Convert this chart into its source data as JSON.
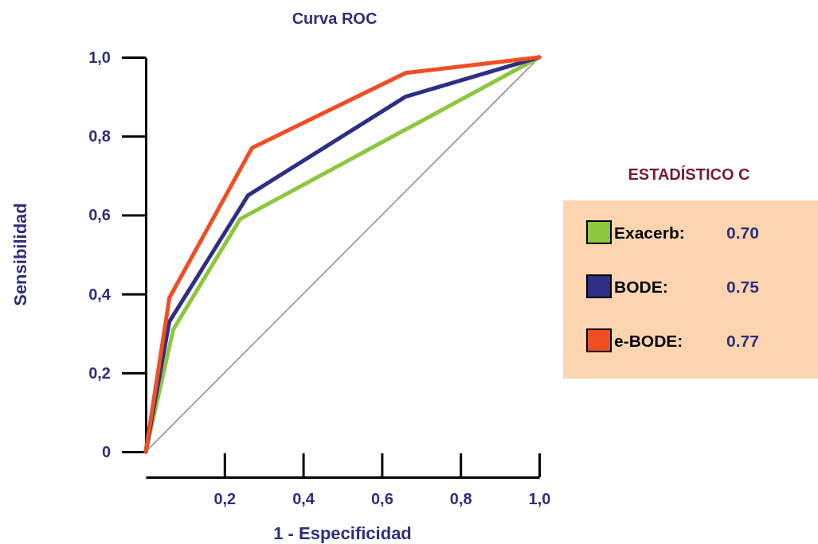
{
  "chart_data": {
    "type": "line",
    "title": "Curva ROC",
    "xlabel": "1 - Especificidad",
    "ylabel": "Sensibilidad",
    "legend_title": "ESTADÍSTICO C",
    "legend": "right",
    "marker": "none",
    "line_style": "solid",
    "grid": false,
    "xlim": [
      0,
      1
    ],
    "ylim": [
      0,
      1
    ],
    "xticks": [
      {
        "value": 0.2,
        "label": "0,2"
      },
      {
        "value": 0.4,
        "label": "0,4"
      },
      {
        "value": 0.6,
        "label": "0,6"
      },
      {
        "value": 0.8,
        "label": "0,8"
      },
      {
        "value": 1,
        "label": "1,0"
      }
    ],
    "yticks": [
      0,
      {
        "value": 0.2,
        "label": "0,2"
      },
      {
        "value": 0.4,
        "label": "0,4"
      },
      {
        "value": 0.6,
        "label": "0,6"
      },
      {
        "value": 0.8,
        "label": "0,8"
      },
      {
        "value": 1,
        "label": "1,0"
      }
    ],
    "series": [
      {
        "color": "#777777",
        "x": [
          0,
          1
        ],
        "values": [
          0,
          1
        ]
      },
      {
        "name": "Exacerb:",
        "color": "#8dc63f",
        "x": [
          0,
          0.07,
          0.24,
          1
        ],
        "values": [
          0,
          0.31,
          0.59,
          1
        ]
      },
      {
        "name": "BODE:",
        "color": "#2e2e85",
        "x": [
          0,
          0.06,
          0.26,
          0.66,
          1
        ],
        "values": [
          0,
          0.33,
          0.65,
          0.9,
          1
        ]
      },
      {
        "name": "e-BODE:",
        "color": "#f04e23",
        "x": [
          0,
          0.06,
          0.27,
          0.66,
          1
        ],
        "values": [
          0,
          0.39,
          0.77,
          0.96,
          1
        ]
      }
    ],
    "annotations": [
      "0.70",
      "0.75",
      "0.77"
    ]
  }
}
